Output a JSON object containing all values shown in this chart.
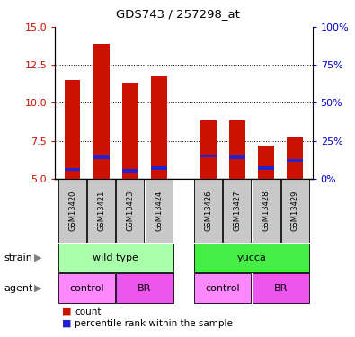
{
  "title": "GDS743 / 257298_at",
  "samples": [
    "GSM13420",
    "GSM13421",
    "GSM13423",
    "GSM13424",
    "GSM13426",
    "GSM13427",
    "GSM13428",
    "GSM13429"
  ],
  "bar_bottom": 5.0,
  "red_values": [
    11.5,
    13.85,
    11.3,
    11.75,
    8.85,
    8.85,
    7.2,
    7.7
  ],
  "blue_values": [
    5.6,
    6.4,
    5.5,
    5.7,
    6.5,
    6.4,
    5.7,
    6.2
  ],
  "ylim_left": [
    5,
    15
  ],
  "yticks_left": [
    5,
    7.5,
    10,
    12.5,
    15
  ],
  "yticks_right": [
    0,
    25,
    50,
    75,
    100
  ],
  "ylim_right": [
    0,
    100
  ],
  "strain_labels": [
    "wild type",
    "yucca"
  ],
  "strain_colors": [
    "#AAFFAA",
    "#44EE44"
  ],
  "agent_labels": [
    "control",
    "BR",
    "control",
    "BR"
  ],
  "agent_color_light": "#FF88FF",
  "agent_color_dark": "#EE55EE",
  "bar_color_red": "#CC1100",
  "bar_color_blue": "#2222CC",
  "bar_width": 0.55,
  "background_samples": "#C8C8C8",
  "axis_color_left": "#CC1100",
  "axis_color_right": "#0000CC",
  "grid_color": "#555555"
}
